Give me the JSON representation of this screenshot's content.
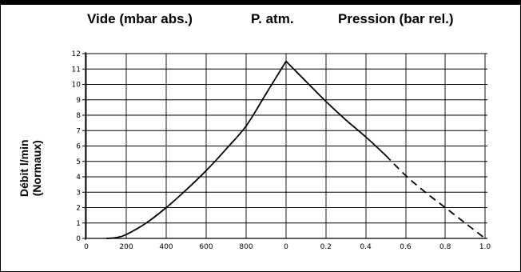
{
  "header": {
    "vacuum_label": "Vide (mbar abs.)",
    "atm_label": "P. atm.",
    "pressure_label": "Pression (bar rel.)"
  },
  "y_axis": {
    "line1": "Débit l/min",
    "line2": "(Normaux)"
  },
  "chart_data": {
    "type": "line",
    "title": "",
    "ylabel": "Débit l/min (Normaux)",
    "ylim": [
      0,
      12
    ],
    "y_ticks": [
      0,
      1,
      2,
      3,
      4,
      5,
      6,
      7,
      8,
      9,
      10,
      11,
      12
    ],
    "grid": true,
    "panels": [
      {
        "name": "vacuum",
        "xlabel": "Vide (mbar abs.)",
        "xlim": [
          0,
          1000
        ],
        "x_ticks": [
          "0",
          "200",
          "400",
          "600",
          "800",
          "0"
        ],
        "x": [
          100,
          150,
          200,
          300,
          400,
          500,
          600,
          700,
          800,
          900,
          1000
        ],
        "y": [
          0,
          0.05,
          0.25,
          1.0,
          2.0,
          3.15,
          4.4,
          5.8,
          7.3,
          9.4,
          11.5
        ],
        "style": "solid"
      },
      {
        "name": "pressure",
        "xlabel": "Pression (bar rel.)",
        "xlim": [
          0,
          1.0
        ],
        "x_ticks": [
          "0.2",
          "0.4",
          "0.6",
          "0.8",
          "1.0"
        ],
        "segments": [
          {
            "x": [
              0,
              0.1,
              0.2,
              0.3,
              0.4,
              0.5
            ],
            "y": [
              11.5,
              10.2,
              8.9,
              7.7,
              6.6,
              5.4
            ],
            "style": "solid"
          },
          {
            "x": [
              0.5,
              0.6,
              0.7,
              0.8,
              0.9,
              1.0
            ],
            "y": [
              5.4,
              4.1,
              3.0,
              2.0,
              1.0,
              0
            ],
            "style": "dashed"
          }
        ]
      }
    ]
  }
}
